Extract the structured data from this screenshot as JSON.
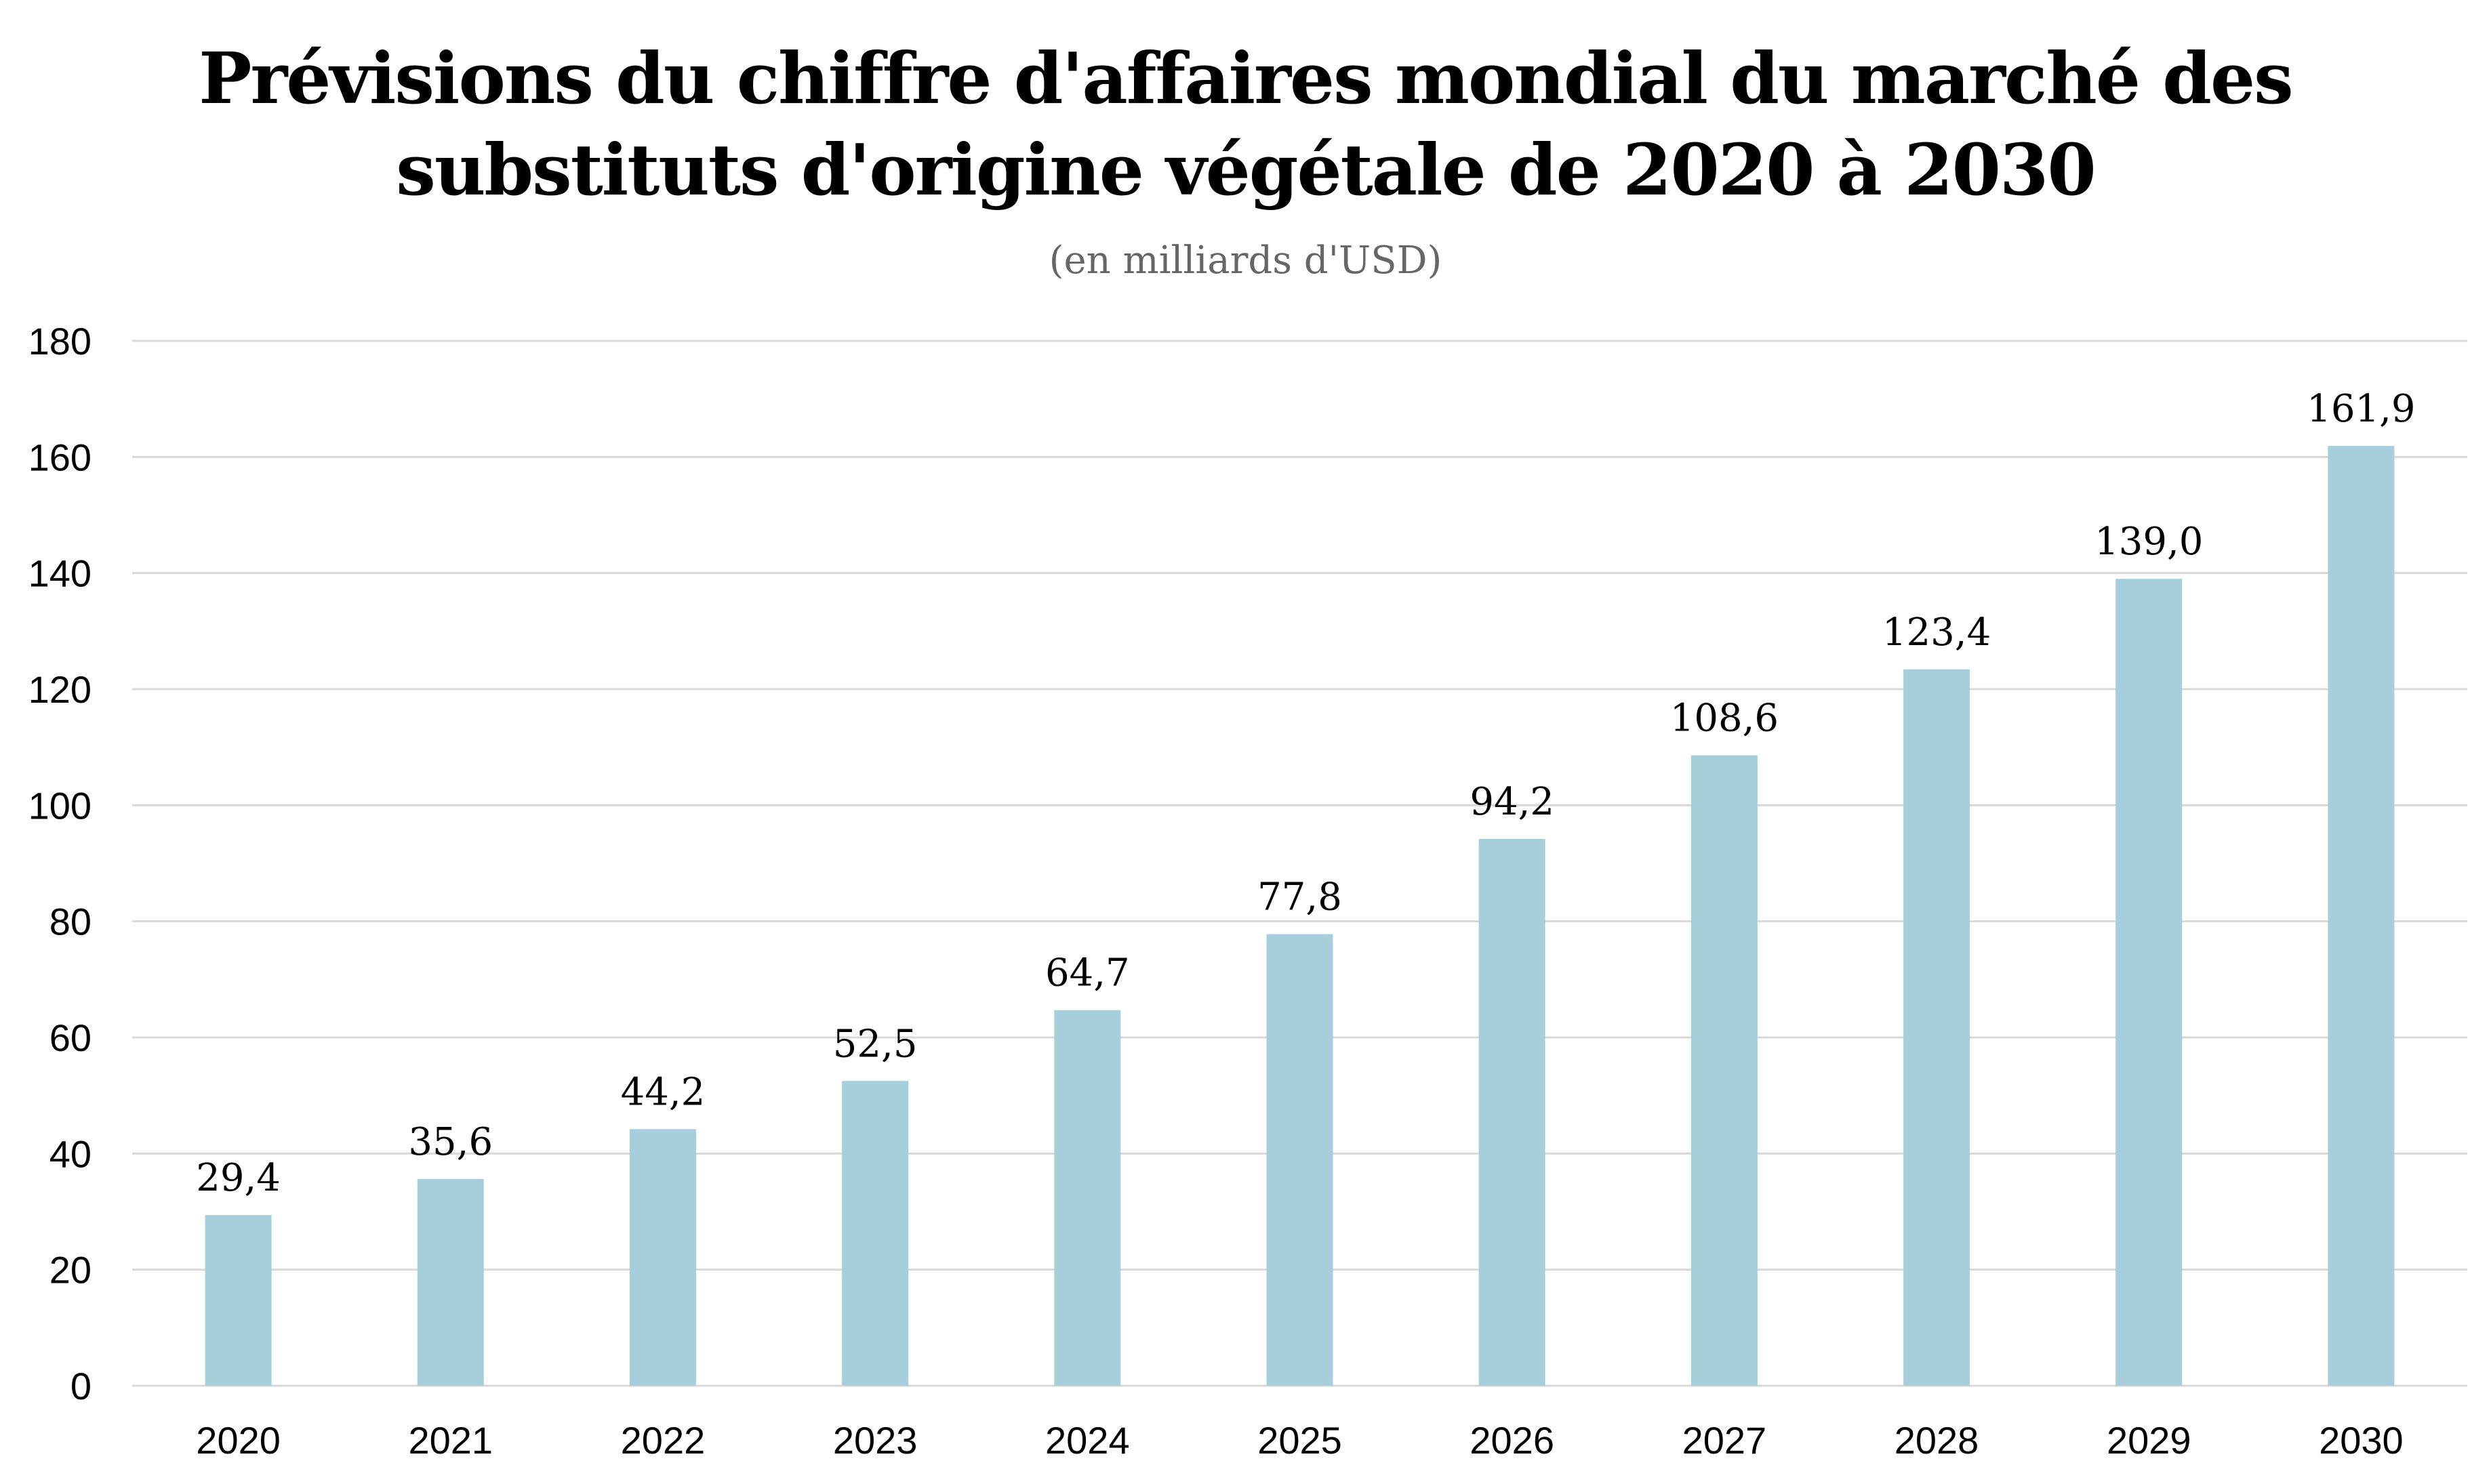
{
  "chart_data": {
    "type": "bar",
    "title_line1": "Prévisions du chiffre d'affaires mondial du marché des",
    "title_line2": "substituts d'origine végétale de 2020 à 2030",
    "subtitle": "(en milliards d'USD)",
    "categories": [
      "2020",
      "2021",
      "2022",
      "2023",
      "2024",
      "2025",
      "2026",
      "2027",
      "2028",
      "2029",
      "2030"
    ],
    "values": [
      29.4,
      35.6,
      44.2,
      52.5,
      64.7,
      77.8,
      94.2,
      108.6,
      123.4,
      139.0,
      161.9
    ],
    "value_labels": [
      "29,4",
      "35,6",
      "44,2",
      "52,5",
      "64,7",
      "77,8",
      "94,2",
      "108,6",
      "123,4",
      "139,0",
      "161,9"
    ],
    "y_ticks": [
      "0",
      "20",
      "40",
      "60",
      "80",
      "100",
      "120",
      "140",
      "160",
      "180"
    ],
    "ylim": [
      0,
      180
    ],
    "grid": true,
    "legend": "none",
    "bar_color": "#a7cfdb",
    "grid_color": "#d9d9d9"
  }
}
